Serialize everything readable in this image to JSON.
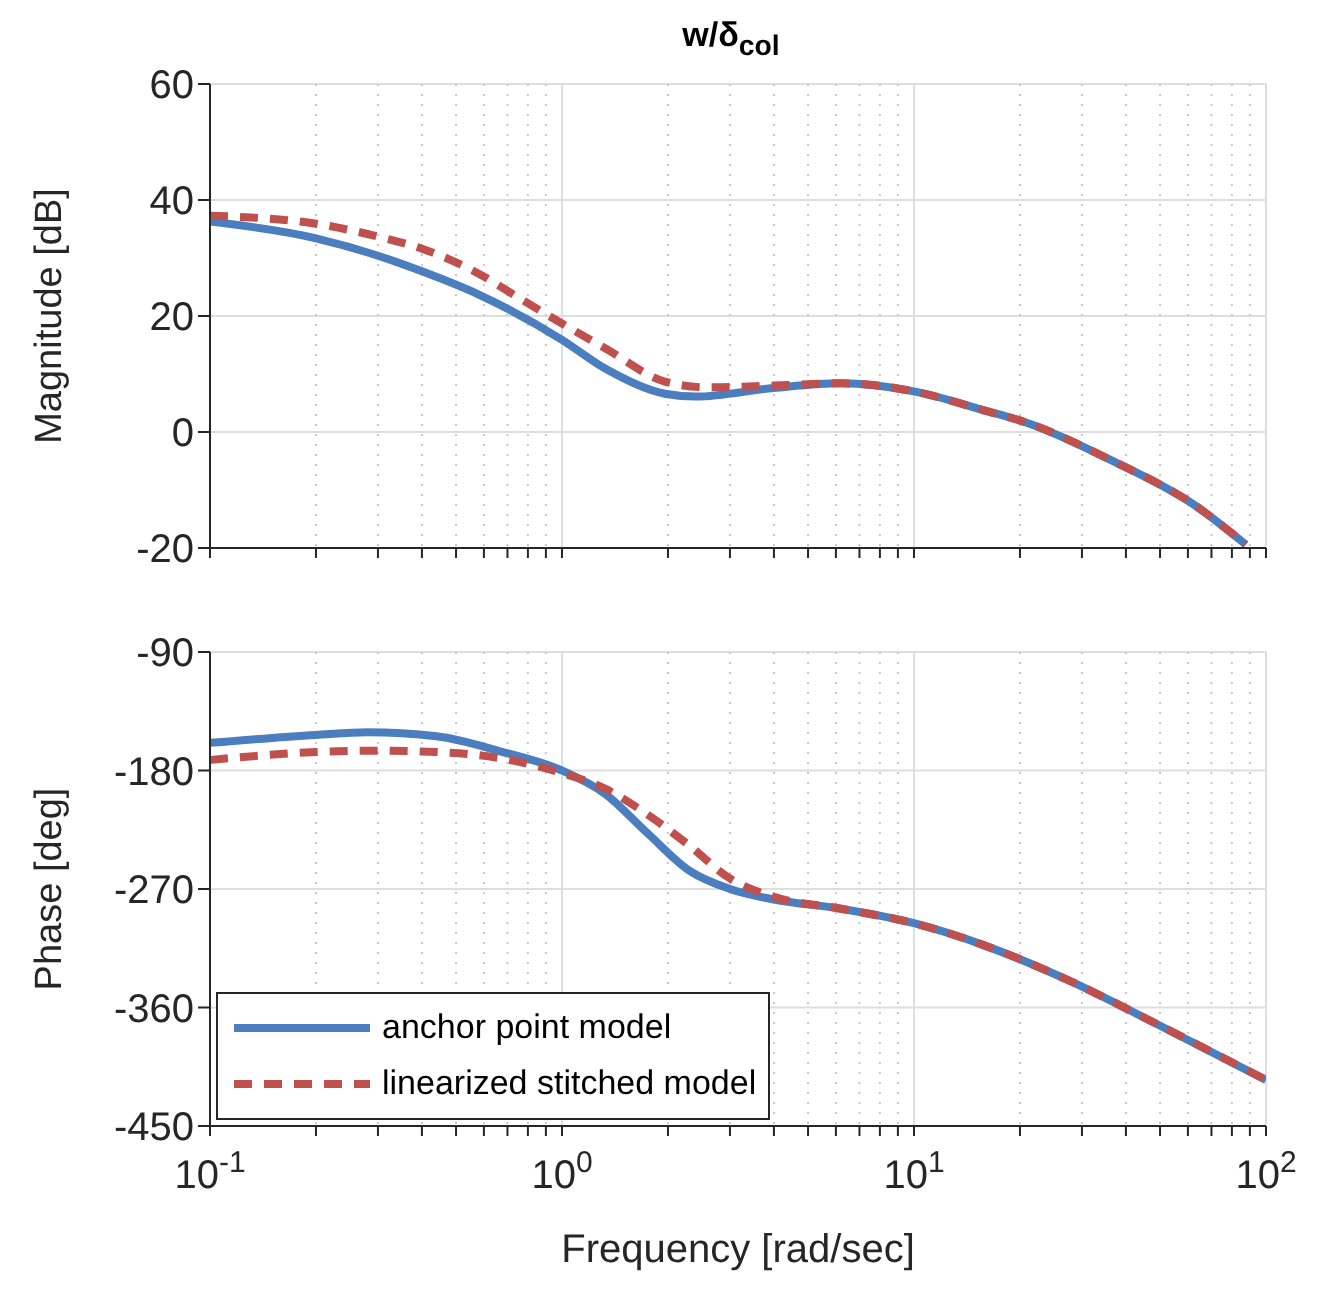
{
  "chart_data": [
    {
      "type": "line",
      "title": "w/δ$_{col}$",
      "ylabel": "Magnitude [dB]",
      "log": "x",
      "grid": true,
      "tick_labels": "y",
      "xlim": [
        0.1,
        100
      ],
      "ylim": [
        -20,
        60
      ],
      "yticks": [
        -20,
        0,
        20,
        40,
        60
      ],
      "xticks": [
        {
          "value": 0.1,
          "label": null
        },
        {
          "value": 0.2,
          "label": null
        },
        {
          "value": 0.3,
          "label": null
        },
        {
          "value": 0.4,
          "label": null
        },
        {
          "value": 0.5,
          "label": null
        },
        {
          "value": 0.6,
          "label": null
        },
        {
          "value": 0.7,
          "label": null
        },
        {
          "value": 0.8,
          "label": null
        },
        {
          "value": 0.9,
          "label": null
        },
        {
          "value": 1,
          "label": null
        },
        {
          "value": 2,
          "label": null
        },
        {
          "value": 3,
          "label": null
        },
        {
          "value": 4,
          "label": null
        },
        {
          "value": 5,
          "label": null
        },
        {
          "value": 6,
          "label": null
        },
        {
          "value": 7,
          "label": null
        },
        {
          "value": 8,
          "label": null
        },
        {
          "value": 9,
          "label": null
        },
        {
          "value": 10,
          "label": null
        },
        {
          "value": 20,
          "label": null
        },
        {
          "value": 30,
          "label": null
        },
        {
          "value": 40,
          "label": null
        },
        {
          "value": 50,
          "label": null
        },
        {
          "value": 60,
          "label": null
        },
        {
          "value": 70,
          "label": null
        },
        {
          "value": 80,
          "label": null
        },
        {
          "value": 90,
          "label": null
        },
        {
          "value": 100,
          "label": null
        }
      ],
      "series": [
        {
          "color": "#4a7ebf",
          "line_style": "solid",
          "x": [
            0.1,
            0.2,
            0.3,
            0.4,
            0.58,
            1,
            1.33,
            1.96,
            2.4,
            4,
            6.2,
            10,
            15.9,
            20.9,
            36.4,
            63,
            87.6
          ],
          "values": [
            36.3,
            33.4,
            30.4,
            27.7,
            23.7,
            15.9,
            10.9,
            6.6,
            6.1,
            7.6,
            8.4,
            7,
            3.7,
            1.6,
            -4.9,
            -12.7,
            -19.4
          ]
        },
        {
          "color": "#c0504d",
          "line_style": "dashed",
          "x": [
            0.1,
            0.2,
            0.3,
            0.4,
            0.58,
            0.76,
            1,
            1.33,
            1.96,
            2.6,
            4,
            6.2,
            10,
            15.9,
            20.9,
            36.4,
            63,
            87.6
          ],
          "values": [
            37.3,
            35.9,
            33.7,
            31.6,
            27.3,
            23,
            18.7,
            14.4,
            8.7,
            7.7,
            8,
            8.4,
            7,
            3.7,
            1.6,
            -4.9,
            -12.7,
            -19.4
          ]
        }
      ]
    },
    {
      "type": "line",
      "ylabel": "Phase [deg]",
      "xlabel": "Frequency [rad/sec]",
      "log": "x",
      "grid": true,
      "legend": "bottom left",
      "xlim": [
        0.1,
        100
      ],
      "ylim": [
        -450,
        -90
      ],
      "yticks": [
        -450,
        -360,
        -270,
        -180,
        -90
      ],
      "xticks": [
        {
          "value": 0.1,
          "label": "10$^{-1}$"
        },
        {
          "value": 0.2,
          "label": null
        },
        {
          "value": 0.3,
          "label": null
        },
        {
          "value": 0.4,
          "label": null
        },
        {
          "value": 0.5,
          "label": null
        },
        {
          "value": 0.6,
          "label": null
        },
        {
          "value": 0.7,
          "label": null
        },
        {
          "value": 0.8,
          "label": null
        },
        {
          "value": 0.9,
          "label": null
        },
        {
          "value": 1,
          "label": "10$^{0}$"
        },
        {
          "value": 2,
          "label": null
        },
        {
          "value": 3,
          "label": null
        },
        {
          "value": 4,
          "label": null
        },
        {
          "value": 5,
          "label": null
        },
        {
          "value": 6,
          "label": null
        },
        {
          "value": 7,
          "label": null
        },
        {
          "value": 8,
          "label": null
        },
        {
          "value": 9,
          "label": null
        },
        {
          "value": 10,
          "label": "10$^{1}$"
        },
        {
          "value": 20,
          "label": null
        },
        {
          "value": 30,
          "label": null
        },
        {
          "value": 40,
          "label": null
        },
        {
          "value": 50,
          "label": null
        },
        {
          "value": 60,
          "label": null
        },
        {
          "value": 70,
          "label": null
        },
        {
          "value": 80,
          "label": null
        },
        {
          "value": 90,
          "label": null
        },
        {
          "value": 100,
          "label": "10$^{2}$"
        }
      ],
      "series": [
        {
          "name": "anchor point model",
          "color": "#4a7ebf",
          "line_style": "solid",
          "x": [
            0.1,
            0.2,
            0.28,
            0.44,
            0.68,
            1,
            1.33,
            1.74,
            2.3,
            3,
            4,
            6.2,
            10,
            15.9,
            27.3,
            47.7,
            100
          ],
          "values": [
            -159,
            -153,
            -151,
            -154,
            -166,
            -180,
            -198,
            -227,
            -256,
            -270,
            -278,
            -285,
            -296,
            -313,
            -339,
            -371,
            -415
          ]
        },
        {
          "name": "linearized stitched model",
          "color": "#c0504d",
          "line_style": "dashed",
          "x": [
            0.1,
            0.2,
            0.3,
            0.44,
            0.68,
            1,
            1.33,
            1.74,
            2.3,
            3,
            4,
            6.2,
            10,
            15.9,
            27.3,
            47.7,
            100
          ],
          "values": [
            -172,
            -166,
            -165,
            -166,
            -171,
            -182,
            -194,
            -213,
            -237,
            -262,
            -276,
            -285,
            -296,
            -313,
            -339,
            -371,
            -415
          ]
        }
      ]
    }
  ]
}
